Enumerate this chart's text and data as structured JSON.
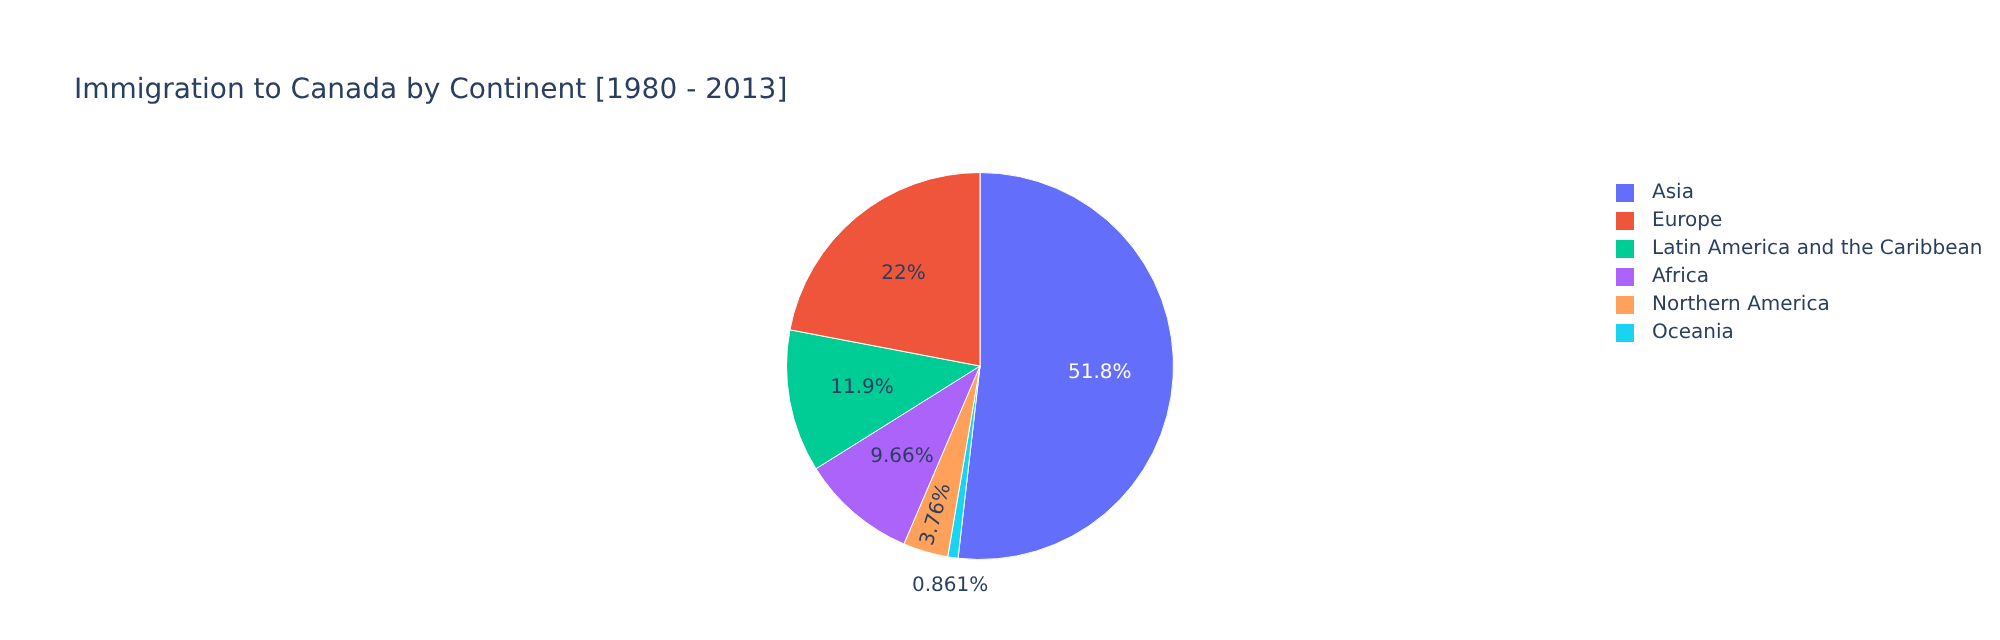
{
  "chart_data": {
    "type": "pie",
    "title": "Immigration to Canada by Continent [1980 - 2013]",
    "categories": [
      "Asia",
      "Europe",
      "Latin America and the Caribbean",
      "Africa",
      "Northern America",
      "Oceania"
    ],
    "values": [
      51.8,
      22,
      11.9,
      9.66,
      3.76,
      0.861
    ],
    "colors": [
      "#636efa",
      "#ef553b",
      "#00cc96",
      "#ab63fa",
      "#ffa15a",
      "#19d3f3"
    ],
    "value_labels": [
      "51.8%",
      "22%",
      "11.9%",
      "9.66%",
      "3.76%",
      "0.861%"
    ],
    "legend": "top right"
  }
}
